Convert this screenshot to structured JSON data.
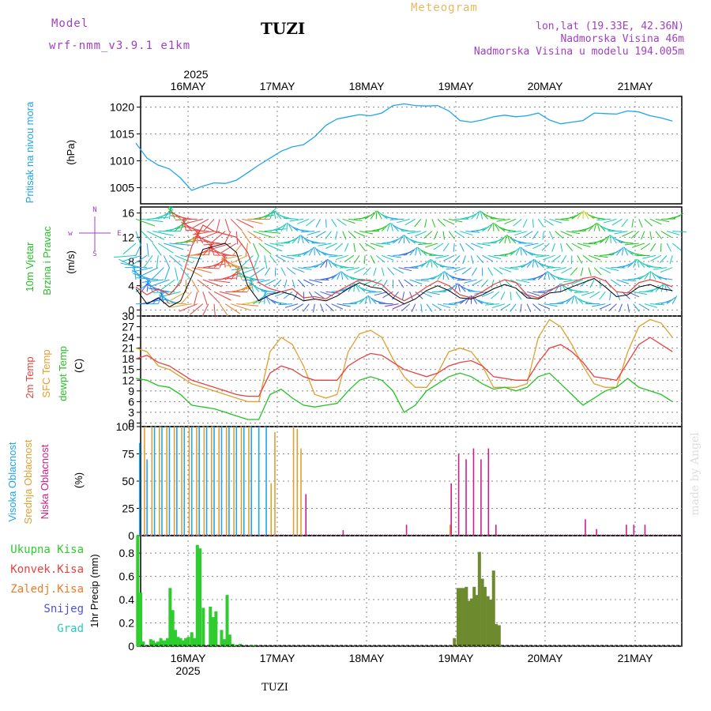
{
  "header": {
    "model_label": "Model",
    "model_name": "wrf-nmm_v3.9.1 e1km",
    "station": "TUZI",
    "meteogram": "Meteogram",
    "coords": "lon,lat (19.33E, 42.36N)",
    "elevation": "Nadmorska Visina 46m",
    "model_elevation": "Nadmorska Visina u modelu 194.005m",
    "footer_station": "TUZI",
    "watermark": "made by Angel"
  },
  "colors": {
    "pressure": "#1ea6ee",
    "t2m": "#e8413f",
    "sfc": "#e0a030",
    "dew": "#22c322",
    "high_cloud": "#1ea6ee",
    "mid_cloud": "#e0a030",
    "low_cloud": "#cc1f8a",
    "total_precip": "#2ecc2e",
    "convective": "#e8413f",
    "frozen": "#f07a2a",
    "snow": "#5050e0",
    "grad": "#2cc9c0",
    "wind_label": "#22c322",
    "wind_dir": "#a040c0",
    "header_purple": "#a040c0",
    "meteogram": "#e8b860"
  },
  "time_axis": {
    "year": "2025",
    "days": [
      "16MAY",
      "17MAY",
      "18MAY",
      "19MAY",
      "20MAY",
      "21MAY"
    ],
    "start_hour": 0,
    "end_hour": 144
  },
  "panels": {
    "pressure": {
      "ylabel_main": "Pritisak na nivou mora",
      "unit": "(hPa)"
    },
    "wind": {
      "ylabel_1": "10m Vjetar",
      "ylabel_2": "Brzina i Pravac",
      "unit": "(m/s)",
      "compass": "N",
      "compass_w": "w",
      "compass_e": "E",
      "compass_s": "S"
    },
    "temp": {
      "ylabel_t2m": "2m Temp",
      "ylabel_sfc": "SFC Temp",
      "ylabel_dew": "dewpt Temp",
      "unit": "(C)"
    },
    "cloud": {
      "ylabel_high": "Visoka Oblacnost",
      "ylabel_mid": "Srednja Oblacnost",
      "ylabel_low": "Niska Oblacnost",
      "unit": "(%)"
    },
    "precip": {
      "legend": [
        "Ukupna Kisa",
        "Konvek.Kisa",
        "Zaledj.Kisa",
        "Snijeg",
        "Grad"
      ],
      "ylabel": "1hr Precip (mm)"
    }
  },
  "chart_data": [
    {
      "type": "line",
      "title": "Pritisak na nivou mora",
      "ylabel": "(hPa)",
      "ylim": [
        1002,
        1022
      ],
      "yticks": [
        1005,
        1010,
        1015,
        1020
      ],
      "x": [
        0,
        3,
        6,
        9,
        12,
        15,
        18,
        21,
        24,
        27,
        30,
        33,
        36,
        39,
        42,
        45,
        48,
        51,
        54,
        57,
        60,
        63,
        66,
        69,
        72,
        75,
        78,
        81,
        84,
        87,
        90,
        93,
        96,
        99,
        102,
        105,
        108,
        111,
        114,
        117,
        120,
        123,
        126,
        129,
        132,
        135,
        138,
        141,
        144
      ],
      "series": [
        {
          "name": "Pritisak na nivou mora",
          "values": [
            1013.3,
            1010.5,
            1009.2,
            1008.5,
            1006.8,
            1004.5,
            1005.3,
            1005.9,
            1005.8,
            1006.4,
            1007.8,
            1009.2,
            1010.5,
            1011.8,
            1012.6,
            1013.0,
            1014.5,
            1016.6,
            1017.8,
            1018.2,
            1018.6,
            1018.4,
            1018.9,
            1020.3,
            1020.6,
            1020.3,
            1020.2,
            1020.3,
            1019.3,
            1017.5,
            1017.2,
            1017.6,
            1018.2,
            1018.5,
            1018.2,
            1018.4,
            1018.9,
            1017.6,
            1016.9,
            1017.2,
            1017.5,
            1018.9,
            1018.8,
            1018.7,
            1019.3,
            1019.1,
            1018.4,
            1018.0,
            1017.4
          ]
        }
      ]
    },
    {
      "type": "line",
      "title": "10m Vjetar Brzina i Pravac",
      "ylabel": "(m/s)",
      "ylim": [
        -1,
        17
      ],
      "yticks": [
        0,
        4,
        8,
        12,
        16
      ],
      "x": [
        0,
        3,
        6,
        9,
        12,
        15,
        18,
        21,
        24,
        27,
        30,
        33,
        36,
        39,
        42,
        45,
        48,
        51,
        54,
        57,
        60,
        63,
        66,
        69,
        72,
        75,
        78,
        81,
        84,
        87,
        90,
        93,
        96,
        99,
        102,
        105,
        108,
        111,
        114,
        117,
        120,
        123,
        126,
        129,
        132,
        135,
        138,
        141,
        144
      ],
      "series": [
        {
          "name": "speed",
          "values": [
            3.5,
            1.0,
            2.0,
            0.5,
            1.5,
            5.5,
            10.0,
            10.5,
            11.0,
            9.5,
            4.0,
            1.5,
            2.5,
            3.0,
            2.5,
            1.5,
            1.8,
            1.5,
            2.3,
            3.5,
            4.5,
            3.8,
            3.5,
            2.0,
            1.0,
            1.8,
            3.2,
            4.0,
            3.2,
            2.0,
            1.8,
            2.5,
            3.5,
            4.2,
            3.6,
            2.0,
            1.8,
            2.8,
            3.0,
            3.8,
            4.5,
            5.2,
            3.8,
            2.2,
            2.5,
            3.8,
            4.2,
            3.5,
            3.2
          ]
        },
        {
          "name": "gust",
          "values": [
            3.8,
            2.5,
            3.5,
            2.5,
            4.5,
            10.5,
            14.0,
            13.0,
            12.5,
            12.0,
            9.5,
            4.5,
            3.5,
            3.0,
            3.5,
            2.0,
            2.2,
            1.8,
            3.0,
            4.0,
            5.0,
            4.8,
            4.2,
            2.5,
            1.5,
            2.5,
            3.8,
            4.8,
            4.0,
            2.5,
            2.0,
            3.0,
            4.2,
            5.0,
            4.5,
            2.5,
            2.0,
            3.2,
            4.0,
            4.5,
            5.2,
            5.5,
            4.8,
            3.0,
            2.8,
            4.5,
            5.0,
            4.5,
            3.8
          ]
        }
      ]
    },
    {
      "type": "line",
      "title": "2m Temp / SFC Temp / dewpt Temp",
      "ylabel": "(C)",
      "ylim": [
        -1,
        30
      ],
      "yticks": [
        0,
        3,
        6,
        9,
        12,
        15,
        18,
        21,
        24,
        27,
        30
      ],
      "x": [
        0,
        3,
        6,
        9,
        12,
        15,
        18,
        21,
        24,
        27,
        30,
        33,
        36,
        39,
        42,
        45,
        48,
        51,
        54,
        57,
        60,
        63,
        66,
        69,
        72,
        75,
        78,
        81,
        84,
        87,
        90,
        93,
        96,
        99,
        102,
        105,
        108,
        111,
        114,
        117,
        120,
        123,
        126,
        129,
        132,
        135,
        138,
        141,
        144
      ],
      "series": [
        {
          "name": "2m Temp",
          "values": [
            18,
            19,
            17,
            16,
            14,
            12,
            11,
            10,
            9,
            8,
            7.5,
            7.5,
            14,
            16,
            15,
            13,
            12,
            12,
            12,
            16,
            18,
            19.5,
            19,
            17,
            15,
            14,
            13,
            14,
            16,
            17,
            17.5,
            16,
            13,
            12.5,
            12,
            12,
            17,
            21,
            22,
            20,
            17,
            13,
            12.5,
            12,
            17,
            22,
            24,
            22,
            20
          ]
        },
        {
          "name": "SFC Temp",
          "values": [
            21,
            20,
            16,
            15,
            13,
            11,
            10,
            9,
            8,
            7,
            6,
            6,
            20,
            24,
            22,
            16,
            8,
            7,
            8,
            20,
            25,
            26,
            24,
            18,
            13,
            10,
            10,
            14,
            20,
            21,
            20,
            16,
            10,
            10,
            10,
            11,
            24,
            29,
            27,
            22,
            16,
            11,
            10,
            10,
            20,
            27,
            29,
            28,
            24
          ]
        },
        {
          "name": "dewpt Temp",
          "values": [
            12.5,
            12,
            10.5,
            10,
            8,
            5,
            4.5,
            4,
            3,
            2,
            1,
            1,
            8,
            9.5,
            7,
            5,
            4.5,
            5,
            5.5,
            9,
            12,
            13,
            12,
            9,
            3,
            5,
            9,
            11,
            13,
            14,
            13,
            11,
            9.5,
            10,
            9,
            10,
            13,
            14,
            11,
            8,
            5,
            7,
            9,
            10,
            12.5,
            10,
            9,
            8,
            6
          ]
        }
      ]
    },
    {
      "type": "bar",
      "title": "Visoka / Srednja / Niska Oblacnost",
      "ylabel": "(%)",
      "ylim": [
        0,
        100
      ],
      "yticks": [
        0,
        25,
        50,
        75,
        100
      ],
      "series": [
        {
          "name": "Visoka Oblacnost",
          "x": [
            1,
            3,
            5,
            7,
            9,
            11,
            13,
            15,
            17,
            19,
            21,
            23,
            25,
            27,
            29,
            31,
            33,
            35
          ],
          "values": [
            85,
            70,
            100,
            100,
            100,
            100,
            100,
            100,
            100,
            100,
            100,
            100,
            100,
            100,
            100,
            100,
            100,
            100
          ]
        },
        {
          "name": "Srednja Oblacnost",
          "x": [
            2,
            4,
            6,
            8,
            10,
            12,
            14,
            16,
            18,
            20,
            22,
            24,
            26,
            28,
            30,
            36,
            37,
            42,
            43,
            44,
            84
          ],
          "values": [
            100,
            100,
            100,
            100,
            100,
            100,
            100,
            100,
            100,
            100,
            100,
            100,
            100,
            100,
            100,
            48,
            95,
            100,
            98,
            80,
            10
          ]
        },
        {
          "name": "Niska Oblacnost",
          "x": [
            45,
            55,
            72,
            84,
            86,
            88,
            90,
            92,
            94,
            96,
            120,
            123,
            131,
            133,
            136
          ],
          "values": [
            38,
            5,
            10,
            48,
            75,
            70,
            80,
            70,
            80,
            10,
            15,
            6,
            10,
            10,
            10
          ]
        }
      ]
    },
    {
      "type": "bar",
      "title": "1hr Precip",
      "ylabel": "1hr Precip (mm)",
      "ylim": [
        0,
        0.95
      ],
      "yticks": [
        0,
        0.2,
        0.4,
        0.6,
        0.8
      ],
      "series": [
        {
          "name": "Ukupna Kisa",
          "x": [
            0.5,
            1.3,
            2.0,
            4.0,
            4.7,
            5.3,
            5.9,
            6.7,
            7.3,
            7.9,
            8.5,
            9.2,
            9.9,
            10.6,
            11.3,
            12.0,
            12.7,
            13.4,
            14.1,
            15.0,
            15.8,
            16.5,
            17.2,
            18.1,
            20.0,
            20.8,
            21.5,
            23.0,
            23.7,
            24.5,
            25.2,
            26.0,
            26.7,
            28.0,
            31.0,
            32.0,
            85.5,
            86.5,
            87.2,
            88.0,
            88.7,
            89.4,
            90.1,
            90.8,
            91.5,
            92.2,
            93.0,
            93.7,
            94.5,
            95.2,
            96.0,
            96.7,
            97.5
          ],
          "values": [
            0.95,
            0.46,
            0.04,
            0.06,
            0.05,
            0.03,
            0.04,
            0.07,
            0.05,
            0.05,
            0.07,
            0.5,
            0.31,
            0.14,
            0.08,
            0.07,
            0.05,
            0.07,
            0.08,
            0.12,
            0.07,
            0.87,
            0.84,
            0.33,
            0.34,
            0.25,
            0.3,
            0.14,
            0.06,
            0.44,
            0.1,
            0.02,
            0.01,
            0.02,
            0.01,
            0.01,
            0.07,
            0.5,
            0.5,
            0.5,
            0.51,
            0.39,
            0.41,
            0.51,
            0.44,
            0.81,
            0.58,
            0.51,
            0.43,
            0.4,
            0.65,
            0.19,
            0.18
          ]
        }
      ]
    }
  ]
}
